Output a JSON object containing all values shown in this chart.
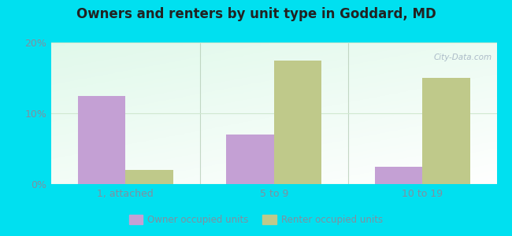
{
  "title": "Owners and renters by unit type in Goddard, MD",
  "categories": [
    "1, attached",
    "5 to 9",
    "10 to 19"
  ],
  "owner_values": [
    12.5,
    7.0,
    2.5
  ],
  "renter_values": [
    2.0,
    17.5,
    15.0
  ],
  "owner_color": "#c4a0d4",
  "renter_color": "#bfc98a",
  "ylim": [
    0,
    20
  ],
  "yticks": [
    0,
    10,
    20
  ],
  "ytick_labels": [
    "0%",
    "10%",
    "20%"
  ],
  "outer_background": "#00e0f0",
  "bar_width": 0.32,
  "legend_labels": [
    "Owner occupied units",
    "Renter occupied units"
  ],
  "watermark": "City-Data.com",
  "divider_color": "#b0c8b0",
  "grid_color": "#d0e8d0",
  "tick_label_color": "#8090a0",
  "title_color": "#222222"
}
